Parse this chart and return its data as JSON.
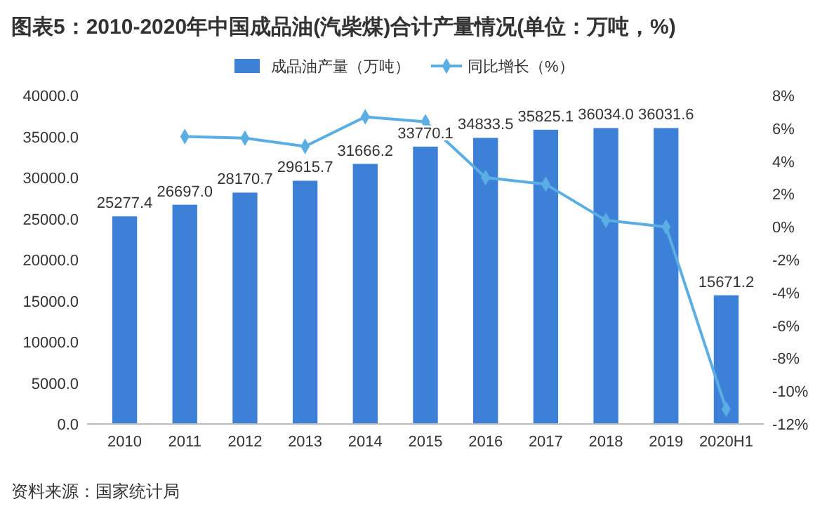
{
  "chart_data": {
    "type": "bar",
    "title": "图表5：2010-2020年中国成品油(汽柴煤)合计产量情况(单位：万吨，%)",
    "categories": [
      "2010",
      "2011",
      "2012",
      "2013",
      "2014",
      "2015",
      "2016",
      "2017",
      "2018",
      "2019",
      "2020H1"
    ],
    "series": [
      {
        "name": "成品油产量（万吨）",
        "color": "#3d80d8",
        "values": [
          25277.4,
          26697.0,
          28170.7,
          29615.7,
          31666.2,
          33770.1,
          34833.5,
          35825.1,
          36034.0,
          36031.6,
          15671.2
        ],
        "value_labels": [
          "25277.4",
          "26697.0",
          "28170.7",
          "29615.7",
          "31666.2",
          "33770.1",
          "34833.5",
          "35825.1",
          "36034.0",
          "36031.6",
          "15671.2"
        ]
      },
      {
        "name": "同比增长（%）",
        "type": "line",
        "axis": "y2",
        "color": "#5baee3",
        "marker": "diamond",
        "values": [
          null,
          5.5,
          5.4,
          4.9,
          6.7,
          6.4,
          3.0,
          2.6,
          0.4,
          0.0,
          -11.1
        ]
      }
    ],
    "ylim": [
      0,
      40000
    ],
    "yticks": [
      {
        "value": 0,
        "label": "0.0"
      },
      {
        "value": 5000,
        "label": "5000.0"
      },
      {
        "value": 10000,
        "label": "10000.0"
      },
      {
        "value": 15000,
        "label": "15000.0"
      },
      {
        "value": 20000,
        "label": "20000.0"
      },
      {
        "value": 25000,
        "label": "25000.0"
      },
      {
        "value": 30000,
        "label": "30000.0"
      },
      {
        "value": 35000,
        "label": "35000.0"
      },
      {
        "value": 40000,
        "label": "40000.0"
      }
    ],
    "y2lim": [
      -12,
      8
    ],
    "y2ticks": [
      {
        "value": -12,
        "label": "-12%"
      },
      {
        "value": -10,
        "label": "-10%"
      },
      {
        "value": -8,
        "label": "-8%"
      },
      {
        "value": -6,
        "label": "-6%"
      },
      {
        "value": -4,
        "label": "-4%"
      },
      {
        "value": -2,
        "label": "-2%"
      },
      {
        "value": 0,
        "label": "0%"
      },
      {
        "value": 2,
        "label": "2%"
      },
      {
        "value": 4,
        "label": "4%"
      },
      {
        "value": 6,
        "label": "6%"
      },
      {
        "value": 8,
        "label": "8%"
      }
    ],
    "grid": false,
    "legend": "top",
    "annotations": [
      "资料来源：国家统计局"
    ]
  }
}
